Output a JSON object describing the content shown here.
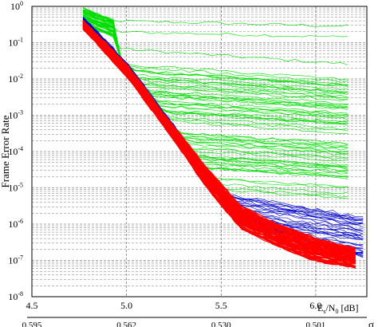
{
  "chart_data": {
    "type": "line",
    "title": "",
    "ylabel": "Frame Error Rate",
    "xlabel": {
      "main": "E",
      "sub1": "s",
      "mid": "/N",
      "sub2": "0",
      "unit": " [dB]"
    },
    "secondary_xlabel": "σ",
    "y_scale": "log",
    "ylim": [
      1e-08,
      1
    ],
    "y_ticks": [
      {
        "value": 1,
        "base": "10",
        "exp": "0"
      },
      {
        "value": 0.1,
        "base": "10",
        "exp": "-1"
      },
      {
        "value": 0.01,
        "base": "10",
        "exp": "-2"
      },
      {
        "value": 0.001,
        "base": "10",
        "exp": "-3"
      },
      {
        "value": 0.0001,
        "base": "10",
        "exp": "-4"
      },
      {
        "value": 1e-05,
        "base": "10",
        "exp": "-5"
      },
      {
        "value": 1e-06,
        "base": "10",
        "exp": "-6"
      },
      {
        "value": 1e-07,
        "base": "10",
        "exp": "-7"
      },
      {
        "value": 1e-08,
        "base": "10",
        "exp": "-8"
      }
    ],
    "xlim": [
      4.5,
      6.27
    ],
    "x_ticks": [
      {
        "value": 4.5,
        "label": "4.5"
      },
      {
        "value": 5.0,
        "label": "5.0"
      },
      {
        "value": 5.5,
        "label": "5.5"
      },
      {
        "value": 6.0,
        "label": "6.0"
      }
    ],
    "secondary_x_ticks": [
      {
        "value": 4.5,
        "label": "0.595"
      },
      {
        "value": 5.0,
        "label": "0.562"
      },
      {
        "value": 5.5,
        "label": "0.530"
      },
      {
        "value": 6.0,
        "label": "0.501"
      }
    ],
    "grid": true,
    "colors": {
      "green": "#00dd00",
      "blue": "#0000cc",
      "red": "#ff0000"
    },
    "groups": [
      {
        "color": "green",
        "x_start": 4.77,
        "x_end": 6.2,
        "knee_x": 5.1,
        "start_log_range": [
          -0.5,
          -0.05
        ],
        "line_count": 70,
        "sample_endpoints_log_fer": [
          -0.55,
          -0.85,
          -1.6,
          -2.2,
          -2.5,
          -2.6,
          -2.8,
          -3.0,
          -3.2,
          -3.5,
          -3.8,
          -4.1,
          -4.4,
          -4.7,
          -5.0,
          -5.3
        ]
      },
      {
        "color": "blue",
        "x_start": 4.77,
        "x_end": 6.27,
        "line_count": 40,
        "end_log_range": [
          -7.2,
          -5.8
        ]
      },
      {
        "color": "red",
        "x_start": 4.77,
        "x_end": 6.22,
        "line_count": 80,
        "band": [
          {
            "x": 4.77,
            "log_fer": [
              -0.6,
              -0.4
            ]
          },
          {
            "x": 5.0,
            "log_fer": [
              -1.9,
              -1.6
            ]
          },
          {
            "x": 5.2,
            "log_fer": [
              -3.3,
              -3.0
            ]
          },
          {
            "x": 5.4,
            "log_fer": [
              -4.8,
              -4.3
            ]
          },
          {
            "x": 5.6,
            "log_fer": [
              -6.1,
              -5.5
            ]
          },
          {
            "x": 5.8,
            "log_fer": [
              -6.6,
              -6.0
            ]
          },
          {
            "x": 6.0,
            "log_fer": [
              -7.0,
              -6.4
            ]
          },
          {
            "x": 6.22,
            "log_fer": [
              -7.2,
              -6.7
            ]
          }
        ]
      }
    ]
  }
}
